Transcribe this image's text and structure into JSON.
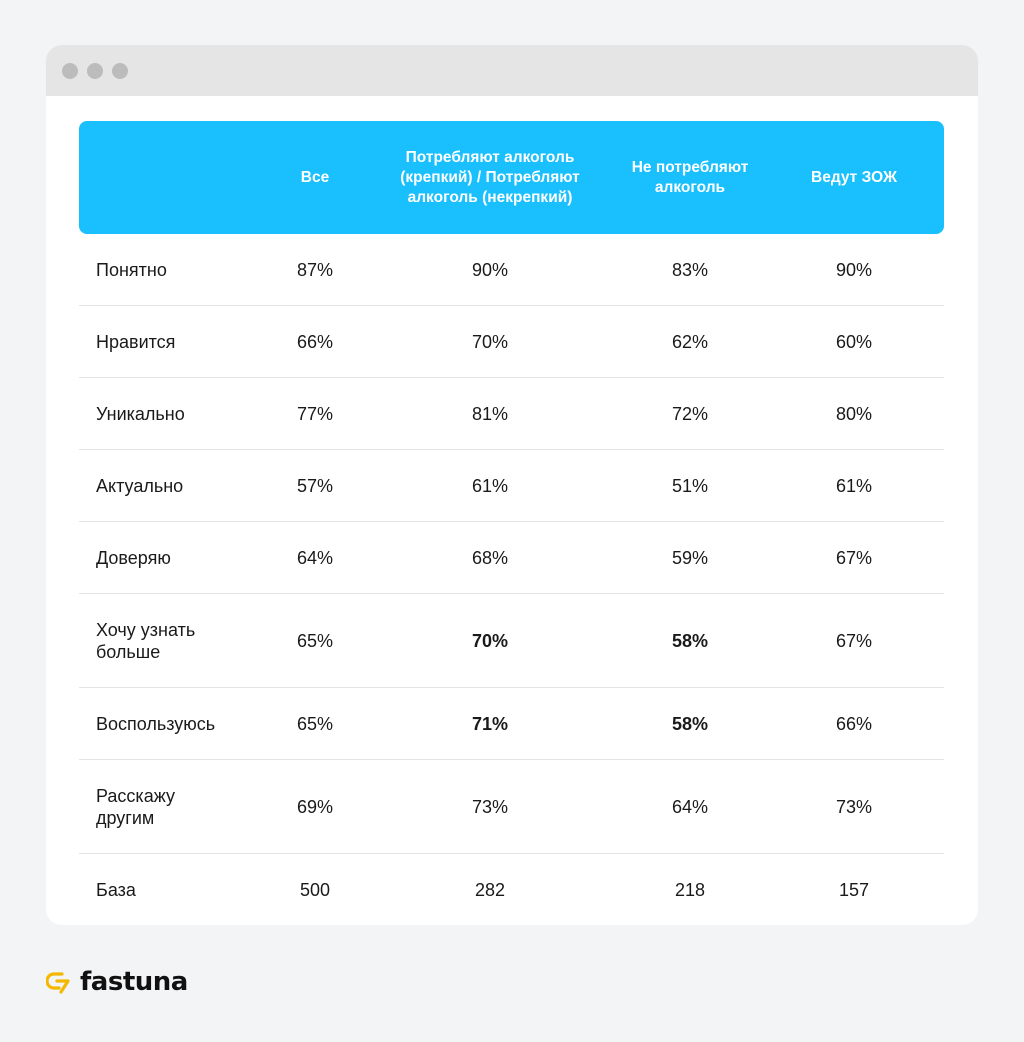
{
  "table": {
    "headers": [
      "",
      "Все",
      "Потребляют алкоголь (крепкий) / Потребляют алкоголь (некрепкий)",
      "Не потребляют алкоголь",
      "Ведут ЗОЖ"
    ],
    "rows": [
      {
        "label": "Понятно",
        "values": [
          "87%",
          "90%",
          "83%",
          "90%"
        ]
      },
      {
        "label": "Нравится",
        "values": [
          "66%",
          "70%",
          "62%",
          "60%"
        ]
      },
      {
        "label": "Уникально",
        "values": [
          "77%",
          "81%",
          "72%",
          "80%"
        ]
      },
      {
        "label": "Актуально",
        "values": [
          "57%",
          "61%",
          "51%",
          "61%"
        ]
      },
      {
        "label": "Доверяю",
        "values": [
          "64%",
          "68%",
          "59%",
          "67%"
        ]
      },
      {
        "label": "Хочу узнать больше",
        "values": [
          "65%",
          "70%",
          "58%",
          "67%"
        ]
      },
      {
        "label": "Воспользуюсь",
        "values": [
          "65%",
          "71%",
          "58%",
          "66%"
        ]
      },
      {
        "label": "Расскажу другим",
        "values": [
          "69%",
          "73%",
          "64%",
          "73%"
        ]
      },
      {
        "label": "База",
        "values": [
          "500",
          "282",
          "218",
          "157"
        ]
      }
    ]
  },
  "brand": {
    "name": "fastuna",
    "accent": "#f5b800",
    "header_color": "#1ac0fd"
  }
}
